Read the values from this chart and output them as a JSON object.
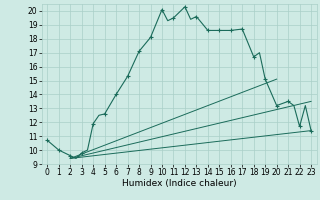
{
  "title": "",
  "xlabel": "Humidex (Indice chaleur)",
  "bg_color": "#ceeae4",
  "line_color": "#1a6b5a",
  "grid_color": "#aacfc8",
  "xlim": [
    -0.5,
    23.5
  ],
  "ylim": [
    9,
    20.5
  ],
  "xticks": [
    0,
    1,
    2,
    3,
    4,
    5,
    6,
    7,
    8,
    9,
    10,
    11,
    12,
    13,
    14,
    15,
    16,
    17,
    18,
    19,
    20,
    21,
    22,
    23
  ],
  "yticks": [
    9,
    10,
    11,
    12,
    13,
    14,
    15,
    16,
    17,
    18,
    19,
    20
  ],
  "line1_x": [
    0,
    1,
    2,
    2.5,
    3,
    3.5,
    4,
    4.5,
    5,
    6,
    7,
    8,
    9,
    10,
    10.5,
    11,
    12,
    12.5,
    13,
    14,
    15,
    16,
    17,
    18,
    18.5,
    19,
    20,
    21,
    21.5,
    22,
    22.5,
    23
  ],
  "line1_y": [
    10.7,
    10.0,
    9.6,
    9.4,
    9.8,
    10.0,
    11.9,
    12.5,
    12.6,
    14.0,
    15.3,
    17.1,
    18.1,
    20.1,
    19.3,
    19.5,
    20.3,
    19.4,
    19.6,
    18.6,
    18.6,
    18.6,
    18.7,
    16.7,
    17.0,
    15.1,
    13.2,
    13.5,
    13.2,
    11.7,
    13.2,
    11.4
  ],
  "line2_x": [
    2,
    20
  ],
  "line2_y": [
    9.4,
    15.1
  ],
  "line3_x": [
    2,
    23
  ],
  "line3_y": [
    9.4,
    13.5
  ],
  "line4_x": [
    2,
    23
  ],
  "line4_y": [
    9.4,
    11.4
  ],
  "markers_x": [
    0,
    1,
    2,
    3,
    4,
    5,
    6,
    7,
    8,
    9,
    10,
    11,
    12,
    13,
    14,
    15,
    16,
    17,
    18,
    19,
    20,
    21,
    22,
    23
  ],
  "markers_y": [
    10.7,
    10.0,
    9.6,
    9.8,
    11.9,
    12.6,
    14.0,
    15.3,
    17.1,
    18.1,
    20.1,
    19.5,
    20.3,
    19.6,
    18.6,
    18.6,
    18.6,
    18.7,
    16.7,
    15.1,
    13.2,
    13.5,
    11.7,
    11.4
  ],
  "xlabel_fontsize": 6.5,
  "tick_fontsize": 5.5
}
